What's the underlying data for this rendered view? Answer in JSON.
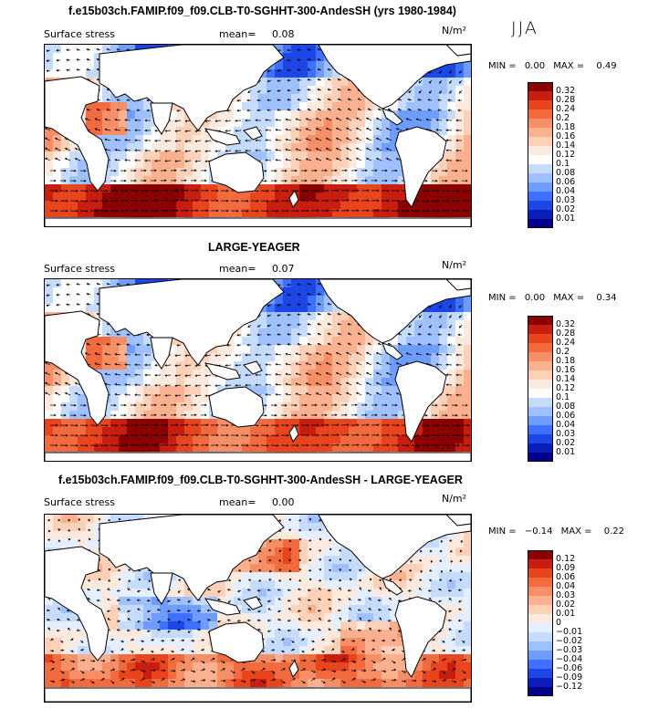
{
  "season": "JJA",
  "panels": [
    {
      "title": "f.e15b03ch.FAMIP.f09_f09.CLB-T0-SGHHT-300-AndesSH (yrs 1980-1984)",
      "field_label": "Surface stress",
      "mean_label": "mean=",
      "mean_value": "0.08",
      "units": "N/m²",
      "min_label": "MIN =",
      "min_value": "0.00",
      "max_label": "MAX =",
      "max_value": "0.49",
      "style": "abs",
      "colorbar_levels": [
        "0.32",
        "0.28",
        "0.24",
        "0.2",
        "0.18",
        "0.16",
        "0.14",
        "0.12",
        "0.1",
        "0.08",
        "0.06",
        "0.04",
        "0.03",
        "0.02",
        "0.01"
      ],
      "colorbar_colors": [
        "#8b0000",
        "#c81e10",
        "#e8441e",
        "#f26b3e",
        "#f78f66",
        "#fbb090",
        "#fdd0b8",
        "#fdeade",
        "#ffffff",
        "#c6dcff",
        "#9fc1ff",
        "#6f9cff",
        "#3f71ff",
        "#1c47e6",
        "#0b1fb8",
        "#00008b"
      ]
    },
    {
      "title": "LARGE-YEAGER",
      "field_label": "Surface stress",
      "mean_label": "mean=",
      "mean_value": "0.07",
      "units": "N/m²",
      "min_label": "MIN =",
      "min_value": "0.00",
      "max_label": "MAX =",
      "max_value": "0.34",
      "style": "abs",
      "colorbar_levels": [
        "0.32",
        "0.28",
        "0.24",
        "0.2",
        "0.18",
        "0.16",
        "0.14",
        "0.12",
        "0.1",
        "0.08",
        "0.06",
        "0.04",
        "0.03",
        "0.02",
        "0.01"
      ],
      "colorbar_colors": [
        "#8b0000",
        "#c81e10",
        "#e8441e",
        "#f26b3e",
        "#f78f66",
        "#fbb090",
        "#fdd0b8",
        "#fdeade",
        "#ffffff",
        "#c6dcff",
        "#9fc1ff",
        "#6f9cff",
        "#3f71ff",
        "#1c47e6",
        "#0b1fb8",
        "#00008b"
      ]
    },
    {
      "title": "f.e15b03ch.FAMIP.f09_f09.CLB-T0-SGHHT-300-AndesSH - LARGE-YEAGER",
      "field_label": "Surface stress",
      "mean_label": "mean=",
      "mean_value": "0.00",
      "units": "N/m²",
      "min_label": "MIN =",
      "min_value": "−0.14",
      "max_label": "MAX =",
      "max_value": "0.22",
      "style": "diff",
      "colorbar_levels": [
        "0.12",
        "0.09",
        "0.06",
        "0.04",
        "0.03",
        "0.02",
        "0.01",
        "0",
        "−0.01",
        "−0.02",
        "−0.03",
        "−0.04",
        "−0.06",
        "−0.09",
        "−0.12"
      ],
      "colorbar_colors": [
        "#8b0000",
        "#c81e10",
        "#e8441e",
        "#f26b3e",
        "#f78f66",
        "#fbb090",
        "#fdd0b8",
        "#fdeade",
        "#e6efff",
        "#c6dcff",
        "#9fc1ff",
        "#6f9cff",
        "#3f71ff",
        "#1c47e6",
        "#0b1fb8",
        "#00008b"
      ]
    }
  ]
}
